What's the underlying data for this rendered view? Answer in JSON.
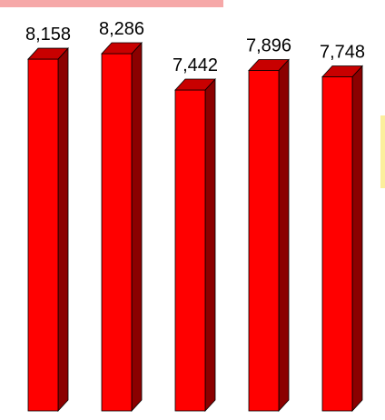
{
  "chart_data": {
    "type": "bar",
    "categories": [
      "",
      "",
      "",
      "",
      ""
    ],
    "values": [
      8158,
      8286,
      7442,
      7896,
      7748
    ],
    "labels": [
      "8,158",
      "8,286",
      "7,442",
      "7,896",
      "7,748"
    ],
    "ylim": [
      0,
      8286
    ],
    "style": "3d-column",
    "colors": {
      "front": "#ff0000",
      "side": "#8b0000",
      "top": "#c80000",
      "top_accent": "#f6a8a8",
      "side_accent": "#fbef9c"
    },
    "grid": false,
    "legend": "none"
  }
}
